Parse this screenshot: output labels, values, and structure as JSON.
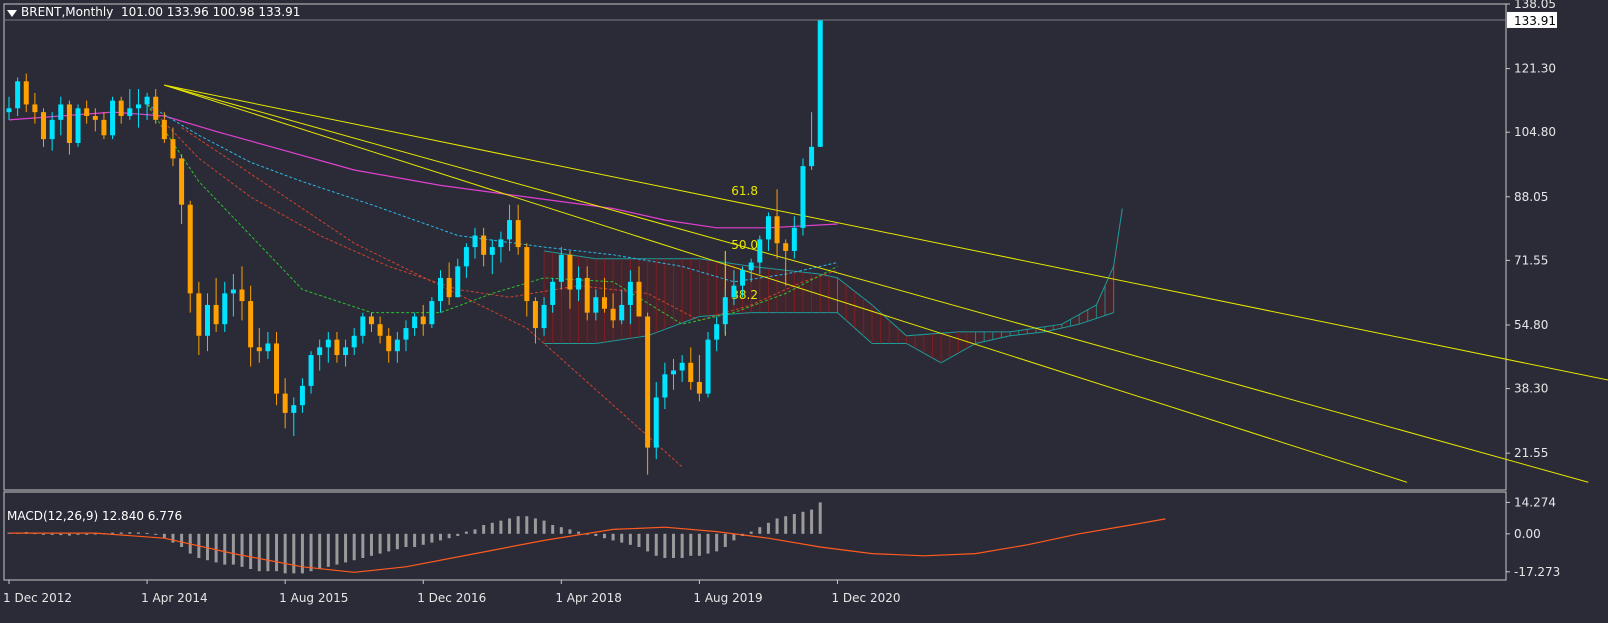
{
  "header": {
    "symbol": "BRENT,Monthly",
    "ohlc": "101.00 133.96 100.98 133.91"
  },
  "macd_header": {
    "label": "MACD(12,26,9)",
    "values": "12.840 6.776"
  },
  "colors": {
    "background": "#2a2b37",
    "bull": "#00e5ff",
    "bear": "#ffa100",
    "trendline": "#e8e800",
    "ma_long": "#e040d0",
    "macd_signal": "#ff5a1f",
    "macd_hist": "#9a9a9a"
  },
  "chart_data": [
    {
      "type": "candlestick",
      "ylim": [
        12,
        138.05
      ],
      "y_ticks": [
        "138.05",
        "121.30",
        "104.80",
        "88.05",
        "71.55",
        "54.80",
        "38.30",
        "21.55"
      ],
      "y_tick_values": [
        138.05,
        121.3,
        104.8,
        88.05,
        71.55,
        54.8,
        38.3,
        21.55
      ],
      "x_ticks": [
        "1 Dec 2012",
        "1 Apr 2014",
        "1 Aug 2015",
        "1 Dec 2016",
        "1 Apr 2018",
        "1 Aug 2019",
        "1 Dec 2020"
      ],
      "x_tick_index": [
        0,
        16,
        32,
        48,
        64,
        80,
        96
      ],
      "last_price": "133.91",
      "fib_levels": [
        "61.8",
        "50.0",
        "38.2"
      ],
      "candles": [
        [
          110,
          114,
          108,
          111
        ],
        [
          111,
          119,
          109,
          118
        ],
        [
          118,
          120,
          110,
          112
        ],
        [
          112,
          115,
          107,
          110
        ],
        [
          110,
          111,
          101,
          103
        ],
        [
          103,
          110,
          100,
          108
        ],
        [
          108,
          114,
          104,
          112
        ],
        [
          112,
          113,
          99,
          102
        ],
        [
          102,
          112,
          101,
          111
        ],
        [
          111,
          113,
          107,
          109
        ],
        [
          109,
          111,
          105,
          108
        ],
        [
          108,
          110,
          103,
          104
        ],
        [
          104,
          114,
          103,
          113
        ],
        [
          113,
          114,
          107,
          109
        ],
        [
          109,
          116,
          108,
          111
        ],
        [
          111,
          116,
          106,
          112
        ],
        [
          112,
          115,
          108,
          114
        ],
        [
          114,
          116,
          107,
          108
        ],
        [
          108,
          110,
          102,
          103
        ],
        [
          103,
          106,
          96,
          98
        ],
        [
          98,
          99,
          81,
          86
        ],
        [
          86,
          87,
          58,
          63
        ],
        [
          63,
          66,
          47,
          52
        ],
        [
          52,
          63,
          48,
          60
        ],
        [
          60,
          67,
          53,
          55
        ],
        [
          55,
          66,
          53,
          63
        ],
        [
          63,
          68,
          57,
          64
        ],
        [
          64,
          70,
          56,
          61
        ],
        [
          61,
          65,
          44,
          49
        ],
        [
          49,
          54,
          45,
          48
        ],
        [
          48,
          53,
          46,
          50
        ],
        [
          50,
          53,
          34,
          37
        ],
        [
          37,
          41,
          28,
          32
        ],
        [
          32,
          36,
          26,
          34
        ],
        [
          34,
          41,
          32,
          39
        ],
        [
          39,
          48,
          37,
          47
        ],
        [
          47,
          51,
          43,
          49
        ],
        [
          49,
          53,
          45,
          51
        ],
        [
          51,
          53,
          45,
          47
        ],
        [
          47,
          51,
          44,
          49
        ],
        [
          49,
          54,
          47,
          52
        ],
        [
          52,
          58,
          50,
          57
        ],
        [
          57,
          58,
          53,
          55
        ],
        [
          55,
          57,
          50,
          52
        ],
        [
          52,
          54,
          45,
          48
        ],
        [
          48,
          53,
          45,
          51
        ],
        [
          51,
          56,
          48,
          54
        ],
        [
          54,
          58,
          52,
          57
        ],
        [
          57,
          60,
          52,
          55
        ],
        [
          55,
          62,
          54,
          61
        ],
        [
          61,
          69,
          58,
          67
        ],
        [
          67,
          71,
          60,
          62
        ],
        [
          62,
          72,
          62,
          70
        ],
        [
          70,
          76,
          67,
          75
        ],
        [
          75,
          80,
          72,
          78
        ],
        [
          78,
          80,
          70,
          73
        ],
        [
          73,
          77,
          68,
          75
        ],
        [
          75,
          79,
          71,
          77
        ],
        [
          77,
          86,
          74,
          82
        ],
        [
          82,
          86,
          73,
          75
        ],
        [
          75,
          76,
          57,
          61
        ],
        [
          61,
          62,
          50,
          54
        ],
        [
          54,
          62,
          52,
          60
        ],
        [
          60,
          67,
          58,
          66
        ],
        [
          66,
          75,
          64,
          73
        ],
        [
          73,
          74,
          59,
          64
        ],
        [
          64,
          70,
          61,
          67
        ],
        [
          67,
          70,
          56,
          58
        ],
        [
          58,
          64,
          56,
          62
        ],
        [
          62,
          67,
          58,
          59
        ],
        [
          59,
          63,
          54,
          56
        ],
        [
          56,
          64,
          55,
          60
        ],
        [
          60,
          69,
          55,
          66
        ],
        [
          66,
          70,
          57,
          57
        ],
        [
          57,
          58,
          16,
          23
        ],
        [
          23,
          40,
          20,
          36
        ],
        [
          36,
          45,
          33,
          42
        ],
        [
          42,
          46,
          38,
          43
        ],
        [
          43,
          47,
          40,
          45
        ],
        [
          45,
          49,
          38,
          40
        ],
        [
          40,
          47,
          35,
          37
        ],
        [
          37,
          53,
          36,
          51
        ],
        [
          51,
          57,
          48,
          55
        ],
        [
          55,
          64,
          53,
          62
        ],
        [
          62,
          69,
          60,
          65
        ],
        [
          65,
          70,
          62,
          69
        ],
        [
          69,
          72,
          66,
          71
        ],
        [
          71,
          78,
          68,
          77
        ],
        [
          77,
          84,
          74,
          83
        ],
        [
          83,
          90,
          72,
          76
        ],
        [
          76,
          77,
          65,
          74
        ],
        [
          74,
          83,
          72,
          80
        ],
        [
          80,
          98,
          78,
          96
        ],
        [
          96,
          110,
          95,
          101
        ],
        [
          101,
          133.96,
          100.98,
          133.91
        ]
      ],
      "ma_long": [
        [
          0,
          108
        ],
        [
          12,
          110
        ],
        [
          18,
          109
        ],
        [
          24,
          105
        ],
        [
          32,
          100
        ],
        [
          40,
          95
        ],
        [
          50,
          91
        ],
        [
          60,
          88
        ],
        [
          70,
          85
        ],
        [
          76,
          82
        ],
        [
          82,
          80
        ],
        [
          88,
          80
        ],
        [
          96,
          81
        ]
      ],
      "ma_mid_dash": [
        [
          16,
          112
        ],
        [
          22,
          104
        ],
        [
          28,
          97
        ],
        [
          34,
          92
        ],
        [
          42,
          86
        ],
        [
          52,
          78
        ],
        [
          62,
          75
        ],
        [
          70,
          73
        ],
        [
          78,
          70
        ],
        [
          84,
          66
        ],
        [
          90,
          68
        ],
        [
          96,
          71
        ]
      ],
      "ma_red_dash": [
        [
          16,
          112
        ],
        [
          22,
          98
        ],
        [
          28,
          88
        ],
        [
          36,
          78
        ],
        [
          44,
          70
        ],
        [
          52,
          64
        ],
        [
          58,
          62
        ],
        [
          66,
          65
        ],
        [
          74,
          63
        ],
        [
          80,
          56
        ],
        [
          86,
          60
        ],
        [
          92,
          66
        ],
        [
          96,
          69
        ]
      ],
      "ma_green_dash": [
        [
          16,
          112
        ],
        [
          22,
          92
        ],
        [
          28,
          78
        ],
        [
          34,
          64
        ],
        [
          42,
          58
        ],
        [
          50,
          58
        ],
        [
          56,
          63
        ],
        [
          62,
          67
        ],
        [
          70,
          66
        ],
        [
          78,
          55
        ],
        [
          84,
          58
        ],
        [
          90,
          63
        ],
        [
          96,
          70
        ]
      ],
      "red_diag_dash": [
        [
          20,
          106
        ],
        [
          40,
          76
        ],
        [
          60,
          54
        ],
        [
          72,
          30
        ],
        [
          78,
          18
        ]
      ],
      "cloud_upper": [
        [
          62,
          74
        ],
        [
          68,
          72
        ],
        [
          74,
          72
        ],
        [
          80,
          72
        ],
        [
          86,
          70
        ],
        [
          90,
          69
        ],
        [
          94,
          68
        ],
        [
          96,
          67
        ],
        [
          100,
          60
        ],
        [
          104,
          52
        ],
        [
          110,
          53
        ],
        [
          116,
          53
        ],
        [
          122,
          55
        ],
        [
          126,
          60
        ],
        [
          128,
          70
        ],
        [
          129,
          85
        ]
      ],
      "cloud_lower": [
        [
          62,
          50
        ],
        [
          68,
          50
        ],
        [
          74,
          52
        ],
        [
          80,
          57
        ],
        [
          86,
          58
        ],
        [
          90,
          58
        ],
        [
          94,
          58
        ],
        [
          96,
          58
        ],
        [
          100,
          50
        ],
        [
          104,
          50
        ],
        [
          108,
          45
        ],
        [
          112,
          50
        ],
        [
          116,
          52
        ],
        [
          120,
          53
        ],
        [
          124,
          55
        ],
        [
          128,
          58
        ]
      ],
      "fib_fan_origin": [
        18,
        117
      ],
      "fib_fan_lines": [
        [
          183,
          14
        ],
        [
          162,
          14
        ],
        [
          228,
          21
        ]
      ],
      "fib_vertical_index": 83
    },
    {
      "type": "macd",
      "ylim": [
        -21,
        19
      ],
      "y_ticks": [
        "14.274",
        "0.00",
        "-17.273"
      ],
      "y_tick_values": [
        14.274,
        0,
        -17.273
      ],
      "histogram": [
        0.5,
        0.5,
        0.8,
        0.3,
        -0.3,
        -0.5,
        -0.6,
        -0.8,
        -0.4,
        -0.2,
        0.1,
        0.3,
        0.5,
        0.6,
        0.7,
        0.6,
        0.4,
        -0.5,
        -2,
        -4,
        -6,
        -9,
        -11,
        -12,
        -13,
        -14,
        -14,
        -15,
        -16,
        -17,
        -17,
        -17,
        -18,
        -18,
        -18,
        -17,
        -16,
        -15,
        -14,
        -13,
        -12,
        -11,
        -10,
        -9,
        -8,
        -7,
        -6,
        -6,
        -5,
        -4,
        -3,
        -2,
        -1,
        1,
        2,
        4,
        5,
        6,
        7,
        8,
        8,
        7,
        6,
        4,
        3,
        2,
        1,
        0,
        -1,
        -2,
        -3,
        -4,
        -5,
        -6,
        -8,
        -10,
        -11,
        -11,
        -11,
        -10,
        -10,
        -9,
        -8,
        -6,
        -3,
        -1,
        1,
        3,
        5,
        7,
        8,
        9,
        10,
        11,
        14.274
      ],
      "signal": [
        [
          0,
          0.3
        ],
        [
          10,
          0.3
        ],
        [
          18,
          -2
        ],
        [
          26,
          -9
        ],
        [
          34,
          -15
        ],
        [
          40,
          -17.5
        ],
        [
          46,
          -15
        ],
        [
          54,
          -9
        ],
        [
          62,
          -3
        ],
        [
          70,
          2
        ],
        [
          76,
          3
        ],
        [
          82,
          1
        ],
        [
          88,
          -2
        ],
        [
          94,
          -6
        ],
        [
          100,
          -9
        ],
        [
          106,
          -10
        ],
        [
          112,
          -9
        ],
        [
          118,
          -5
        ],
        [
          124,
          0
        ],
        [
          130,
          4
        ],
        [
          134,
          6.776
        ]
      ]
    }
  ]
}
